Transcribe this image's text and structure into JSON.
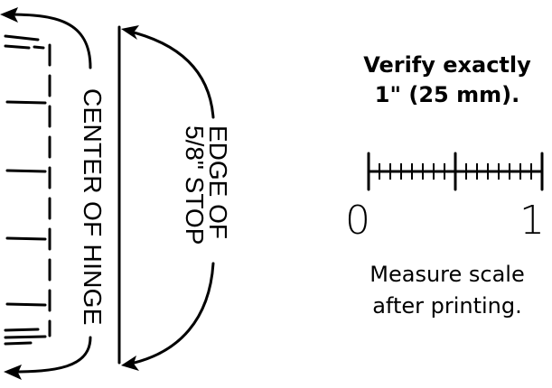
{
  "hinge": {
    "label": "CENTER OF HINGE"
  },
  "stop": {
    "label_line1": "EDGE OF",
    "label_line2": "5/8\" STOP"
  },
  "scale": {
    "verify_line1": "Verify exactly",
    "verify_line2": "1\" (25 mm).",
    "start_label": "0",
    "end_label": "1",
    "note_line1": "Measure scale",
    "note_line2": "after printing."
  },
  "colors": {
    "ink": "#000000",
    "background": "#ffffff"
  }
}
